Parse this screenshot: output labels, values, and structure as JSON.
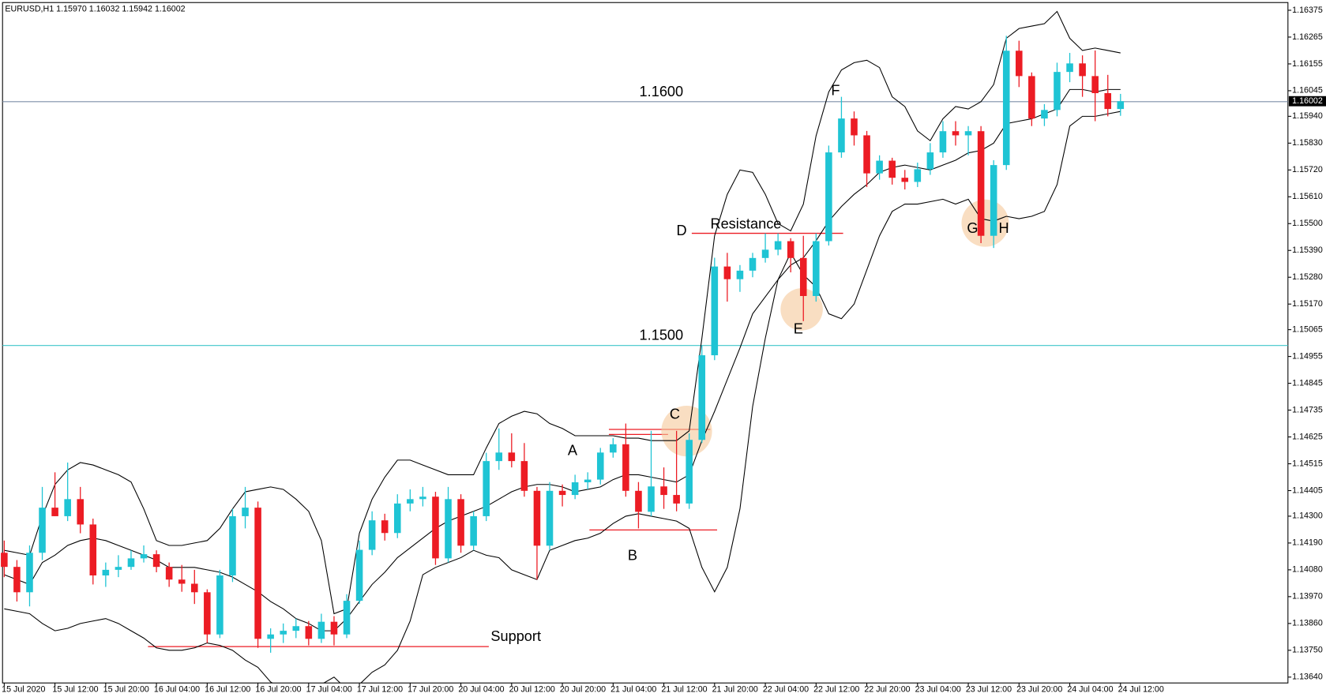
{
  "chart_data": {
    "type": "candlestick",
    "title": "EURUSD,H1  1.15970 1.16032 1.15942 1.16002",
    "categories": [
      "15 Jul 2020",
      null,
      null,
      null,
      "15 Jul 12:00",
      null,
      null,
      null,
      "15 Jul 20:00",
      null,
      null,
      null,
      "16 Jul 04:00",
      null,
      null,
      null,
      "16 Jul 12:00",
      null,
      null,
      null,
      "16 Jul 20:00",
      null,
      null,
      null,
      "17 Jul 04:00",
      null,
      null,
      null,
      "17 Jul 12:00",
      null,
      null,
      null,
      "17 Jul 20:00",
      null,
      null,
      null,
      "20 Jul 04:00",
      null,
      null,
      null,
      "20 Jul 12:00",
      null,
      null,
      null,
      "20 Jul 20:00",
      null,
      null,
      null,
      "21 Jul 04:00",
      null,
      null,
      null,
      "21 Jul 12:00",
      null,
      null,
      null,
      "21 Jul 20:00",
      null,
      null,
      null,
      "22 Jul 04:00",
      null,
      null,
      null,
      "22 Jul 12:00",
      null,
      null,
      null,
      "22 Jul 20:00",
      null,
      null,
      null,
      "23 Jul 04:00",
      null,
      null,
      null,
      "23 Jul 12:00",
      null,
      null,
      null,
      "23 Jul 20:00",
      null,
      null,
      null,
      "24 Jul 04:00",
      null,
      null,
      null,
      "24 Jul 12:00"
    ],
    "ohlc": [
      [
        1.1415,
        1.142,
        1.1405,
        1.14092
      ],
      [
        1.14092,
        1.1412,
        1.1395,
        1.13988
      ],
      [
        1.13988,
        1.1418,
        1.1393,
        1.1415
      ],
      [
        1.1415,
        1.1442,
        1.1412,
        1.14335
      ],
      [
        1.14335,
        1.1448,
        1.143,
        1.143
      ],
      [
        1.143,
        1.1452,
        1.1428,
        1.1437
      ],
      [
        1.1437,
        1.1442,
        1.1423,
        1.14266
      ],
      [
        1.14266,
        1.1429,
        1.1402,
        1.14057
      ],
      [
        1.14057,
        1.1411,
        1.1401,
        1.1408
      ],
      [
        1.1408,
        1.1414,
        1.1405,
        1.14092
      ],
      [
        1.14092,
        1.1416,
        1.1408,
        1.14127
      ],
      [
        1.14127,
        1.1418,
        1.1411,
        1.14144
      ],
      [
        1.14144,
        1.1416,
        1.1407,
        1.14092
      ],
      [
        1.14092,
        1.1411,
        1.1401,
        1.1404
      ],
      [
        1.1404,
        1.141,
        1.1399,
        1.14023
      ],
      [
        1.14023,
        1.1408,
        1.1394,
        1.13988
      ],
      [
        1.13988,
        1.14,
        1.1378,
        1.13815
      ],
      [
        1.13815,
        1.1408,
        1.138,
        1.14057
      ],
      [
        1.14057,
        1.1433,
        1.1403,
        1.143
      ],
      [
        1.143,
        1.1442,
        1.1425,
        1.14335
      ],
      [
        1.14335,
        1.1436,
        1.1376,
        1.13797
      ],
      [
        1.13797,
        1.1384,
        1.1374,
        1.13815
      ],
      [
        1.13815,
        1.1386,
        1.1378,
        1.1383
      ],
      [
        1.1383,
        1.1388,
        1.138,
        1.13849
      ],
      [
        1.13849,
        1.1387,
        1.1377,
        1.13797
      ],
      [
        1.13797,
        1.139,
        1.1378,
        1.13867
      ],
      [
        1.13867,
        1.1389,
        1.1377,
        1.13815
      ],
      [
        1.13815,
        1.1398,
        1.138,
        1.13953
      ],
      [
        1.13953,
        1.142,
        1.1394,
        1.14162
      ],
      [
        1.14162,
        1.1432,
        1.1414,
        1.14283
      ],
      [
        1.14283,
        1.1431,
        1.142,
        1.14231
      ],
      [
        1.14231,
        1.1439,
        1.1421,
        1.14352
      ],
      [
        1.14352,
        1.1441,
        1.1432,
        1.1437
      ],
      [
        1.1437,
        1.1442,
        1.1434,
        1.1438
      ],
      [
        1.1438,
        1.144,
        1.141,
        1.14127
      ],
      [
        1.14127,
        1.1442,
        1.1411,
        1.1437
      ],
      [
        1.1437,
        1.1439,
        1.1415,
        1.14179
      ],
      [
        1.14179,
        1.1432,
        1.1416,
        1.143
      ],
      [
        1.143,
        1.1456,
        1.1428,
        1.14526
      ],
      [
        1.14526,
        1.1466,
        1.1449,
        1.14561
      ],
      [
        1.14561,
        1.1464,
        1.145,
        1.14526
      ],
      [
        1.14526,
        1.146,
        1.1438,
        1.14404
      ],
      [
        1.14404,
        1.1442,
        1.1404,
        1.14179
      ],
      [
        1.14179,
        1.1444,
        1.1416,
        1.14404
      ],
      [
        1.14404,
        1.1443,
        1.1434,
        1.14387
      ],
      [
        1.14387,
        1.1447,
        1.1437,
        1.14439
      ],
      [
        1.14439,
        1.1448,
        1.1441,
        1.1445
      ],
      [
        1.1445,
        1.1458,
        1.1443,
        1.14561
      ],
      [
        1.14561,
        1.1462,
        1.1454,
        1.14595
      ],
      [
        1.14595,
        1.1468,
        1.1438,
        1.14404
      ],
      [
        1.14404,
        1.1444,
        1.1425,
        1.14318
      ],
      [
        1.14318,
        1.1465,
        1.143,
        1.14422
      ],
      [
        1.14422,
        1.145,
        1.1433,
        1.14387
      ],
      [
        1.14387,
        1.1465,
        1.1432,
        1.14352
      ],
      [
        1.14352,
        1.1464,
        1.1433,
        1.14613
      ],
      [
        1.14613,
        1.15,
        1.146,
        1.1496
      ],
      [
        1.1496,
        1.1536,
        1.1494,
        1.15324
      ],
      [
        1.15324,
        1.1538,
        1.1518,
        1.15272
      ],
      [
        1.15272,
        1.1533,
        1.1522,
        1.15307
      ],
      [
        1.15307,
        1.1538,
        1.1528,
        1.15359
      ],
      [
        1.15359,
        1.1546,
        1.1534,
        1.15393
      ],
      [
        1.15393,
        1.1546,
        1.1537,
        1.15428
      ],
      [
        1.15428,
        1.1544,
        1.153,
        1.15359
      ],
      [
        1.15359,
        1.1545,
        1.151,
        1.15203
      ],
      [
        1.15203,
        1.1546,
        1.1518,
        1.15428
      ],
      [
        1.15428,
        1.1582,
        1.1541,
        1.15792
      ],
      [
        1.15792,
        1.1602,
        1.1577,
        1.15931
      ],
      [
        1.15931,
        1.1596,
        1.1582,
        1.15862
      ],
      [
        1.15862,
        1.1588,
        1.1565,
        1.15706
      ],
      [
        1.15706,
        1.1578,
        1.1568,
        1.15758
      ],
      [
        1.15758,
        1.1577,
        1.1566,
        1.15688
      ],
      [
        1.15688,
        1.1572,
        1.1564,
        1.15671
      ],
      [
        1.15671,
        1.1575,
        1.1565,
        1.15723
      ],
      [
        1.15723,
        1.1583,
        1.157,
        1.15792
      ],
      [
        1.15792,
        1.1592,
        1.1577,
        1.15879
      ],
      [
        1.15879,
        1.1592,
        1.1582,
        1.15862
      ],
      [
        1.15862,
        1.159,
        1.1578,
        1.15879
      ],
      [
        1.15879,
        1.159,
        1.1542,
        1.1545
      ],
      [
        1.1545,
        1.1576,
        1.154,
        1.1574
      ],
      [
        1.1574,
        1.1627,
        1.1572,
        1.16209
      ],
      [
        1.16209,
        1.1625,
        1.1606,
        1.16105
      ],
      [
        1.16105,
        1.1612,
        1.159,
        1.15931
      ],
      [
        1.15931,
        1.1599,
        1.159,
        1.15966
      ],
      [
        1.15966,
        1.1616,
        1.1594,
        1.16122
      ],
      [
        1.16122,
        1.162,
        1.1608,
        1.16157
      ],
      [
        1.16157,
        1.1619,
        1.1602,
        1.16105
      ],
      [
        1.16105,
        1.1621,
        1.1592,
        1.16035
      ],
      [
        1.16035,
        1.1611,
        1.1594,
        1.1597
      ],
      [
        1.1597,
        1.16032,
        1.15942,
        1.16002
      ]
    ],
    "up_color": "#1fc4d4",
    "down_color": "#ec1c24",
    "bands": {
      "color": "#000000",
      "upper": [
        1.1416,
        1.1415,
        1.1414,
        1.143,
        1.1443,
        1.1449,
        1.1452,
        1.1451,
        1.1449,
        1.1447,
        1.1444,
        1.1433,
        1.142,
        1.1418,
        1.1418,
        1.1419,
        1.142,
        1.1425,
        1.1433,
        1.144,
        1.1441,
        1.1442,
        1.1441,
        1.1437,
        1.1432,
        1.142,
        1.139,
        1.1392,
        1.1423,
        1.1437,
        1.1446,
        1.1453,
        1.1453,
        1.1451,
        1.1449,
        1.1447,
        1.1447,
        1.1447,
        1.1458,
        1.1468,
        1.1471,
        1.1473,
        1.1472,
        1.1468,
        1.1466,
        1.1463,
        1.1463,
        1.1463,
        1.1463,
        1.1462,
        1.1462,
        1.1461,
        1.1461,
        1.1461,
        1.1465,
        1.1503,
        1.1545,
        1.1562,
        1.1572,
        1.1571,
        1.1562,
        1.155,
        1.1547,
        1.1558,
        1.1586,
        1.1604,
        1.1613,
        1.1616,
        1.1617,
        1.1614,
        1.1602,
        1.1598,
        1.1588,
        1.1584,
        1.1593,
        1.1598,
        1.1597,
        1.16,
        1.1607,
        1.1626,
        1.163,
        1.1631,
        1.1632,
        1.1637,
        1.1626,
        1.1621,
        1.1622,
        1.1621,
        1.162
      ],
      "middle": [
        1.1406,
        1.1404,
        1.1402,
        1.1411,
        1.1414,
        1.1418,
        1.142,
        1.1421,
        1.142,
        1.1418,
        1.1416,
        1.1414,
        1.1412,
        1.1409,
        1.1409,
        1.1409,
        1.1408,
        1.1407,
        1.1405,
        1.1402,
        1.1399,
        1.1395,
        1.1392,
        1.1388,
        1.1386,
        1.1383,
        1.1383,
        1.1388,
        1.1395,
        1.1402,
        1.1407,
        1.1413,
        1.1417,
        1.1421,
        1.1425,
        1.1428,
        1.143,
        1.1432,
        1.1434,
        1.1437,
        1.144,
        1.1442,
        1.1443,
        1.1443,
        1.1442,
        1.144,
        1.1441,
        1.1442,
        1.1445,
        1.1447,
        1.1447,
        1.1446,
        1.1445,
        1.1444,
        1.1447,
        1.1461,
        1.1473,
        1.1486,
        1.1499,
        1.1513,
        1.152,
        1.1527,
        1.1533,
        1.1536,
        1.1543,
        1.1551,
        1.1557,
        1.1562,
        1.1566,
        1.1571,
        1.1573,
        1.1574,
        1.1573,
        1.1572,
        1.1574,
        1.1576,
        1.1579,
        1.158,
        1.1583,
        1.1591,
        1.1592,
        1.1593,
        1.1595,
        1.1597,
        1.1605,
        1.1605,
        1.1604,
        1.1605,
        1.1605
      ],
      "lower": [
        1.1392,
        1.1391,
        1.139,
        1.1386,
        1.1383,
        1.1384,
        1.1386,
        1.1387,
        1.1388,
        1.1386,
        1.1383,
        1.138,
        1.1376,
        1.1375,
        1.1375,
        1.1376,
        1.1378,
        1.1377,
        1.1375,
        1.1371,
        1.1368,
        1.1362,
        1.1359,
        1.1357,
        1.1359,
        1.1361,
        1.1364,
        1.1359,
        1.1361,
        1.1366,
        1.1369,
        1.1375,
        1.1387,
        1.1406,
        1.1409,
        1.1411,
        1.1413,
        1.1416,
        1.1414,
        1.1413,
        1.1408,
        1.1406,
        1.1404,
        1.1416,
        1.1418,
        1.142,
        1.1421,
        1.1423,
        1.1427,
        1.143,
        1.1431,
        1.143,
        1.1429,
        1.1428,
        1.1425,
        1.1409,
        1.1399,
        1.1409,
        1.1433,
        1.1475,
        1.1503,
        1.1527,
        1.1538,
        1.1529,
        1.1524,
        1.1513,
        1.1511,
        1.1517,
        1.1531,
        1.1545,
        1.1555,
        1.1558,
        1.1558,
        1.1559,
        1.156,
        1.1558,
        1.156,
        1.1552,
        1.1551,
        1.1553,
        1.1552,
        1.1553,
        1.1555,
        1.1566,
        1.159,
        1.1594,
        1.1594,
        1.1595,
        1.1596
      ]
    },
    "ylim": [
      1.13616,
      1.16417
    ],
    "yticks": [
      1.16375,
      1.16265,
      1.16155,
      1.16045,
      {
        "value": 1.1594,
        "label": "1.15940"
      },
      {
        "value": 1.1583,
        "label": "1.15830"
      },
      {
        "value": 1.1572,
        "label": "1.15720"
      },
      {
        "value": 1.1561,
        "label": "1.15610"
      },
      {
        "value": 1.155,
        "label": "1.15500"
      },
      {
        "value": 1.1539,
        "label": "1.15390"
      },
      {
        "value": 1.1528,
        "label": "1.15280"
      },
      {
        "value": 1.1517,
        "label": "1.15170"
      },
      1.15065,
      1.14955,
      1.14845,
      1.14735,
      1.14625,
      1.14515,
      1.14405,
      {
        "value": 1.143,
        "label": "1.14300"
      },
      {
        "value": 1.1419,
        "label": "1.14190"
      },
      {
        "value": 1.1408,
        "label": "1.14080"
      },
      {
        "value": 1.1397,
        "label": "1.13970"
      },
      {
        "value": 1.1386,
        "label": "1.13860"
      },
      {
        "value": 1.1375,
        "label": "1.13750"
      },
      {
        "value": 1.1364,
        "label": "1.13640"
      }
    ],
    "levels": [
      {
        "value": 1.16,
        "label": "1.1600",
        "color": "#7d8fa8"
      },
      {
        "value": 1.15,
        "label": "1.1500",
        "color": "#3ec6c9"
      }
    ],
    "current_price": 1.16002,
    "annotations": [
      "A",
      "B",
      "C",
      "D",
      "E",
      "F",
      "G",
      "H",
      "Resistance",
      "Support"
    ]
  }
}
